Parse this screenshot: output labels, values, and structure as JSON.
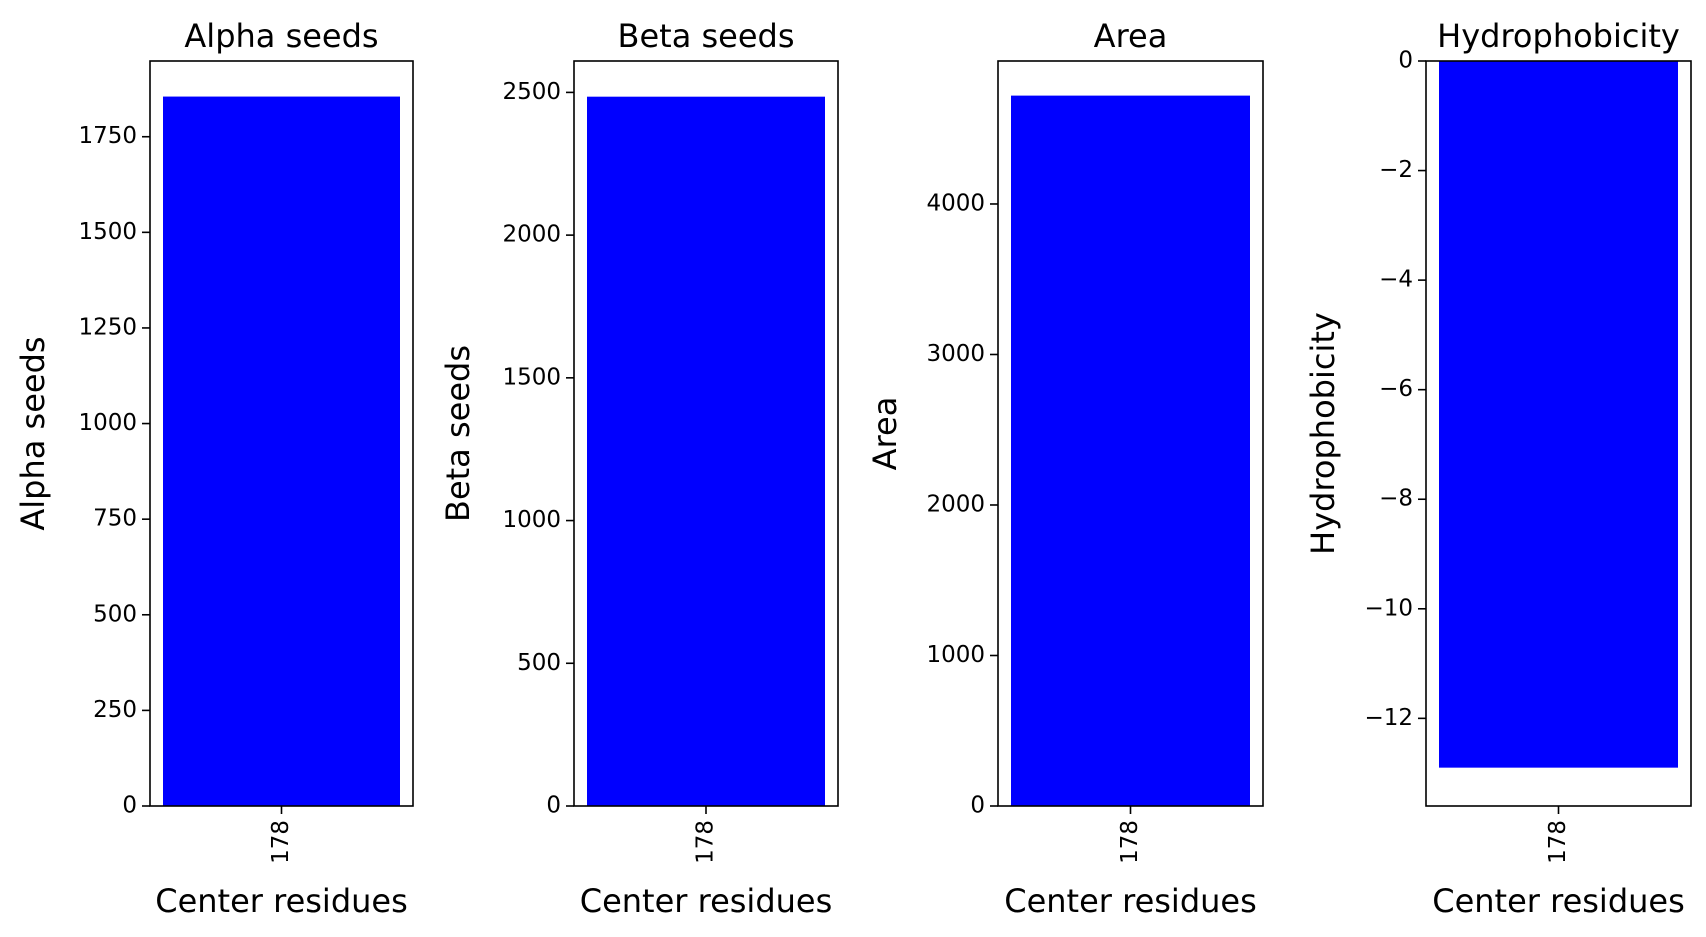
{
  "chart_data": [
    {
      "type": "bar",
      "title": "Alpha seeds",
      "xlabel": "Center residues",
      "ylabel": "Alpha seeds",
      "categories": [
        "178"
      ],
      "values": [
        1855
      ],
      "ylim": [
        0,
        1948
      ],
      "yticks": [
        0,
        250,
        500,
        750,
        1000,
        1250,
        1500,
        1750
      ],
      "color": "#0000ff",
      "grid": false
    },
    {
      "type": "bar",
      "title": "Beta seeds",
      "xlabel": "Center residues",
      "ylabel": "Beta seeds",
      "categories": [
        "178"
      ],
      "values": [
        2485
      ],
      "ylim": [
        0,
        2610
      ],
      "yticks": [
        0,
        500,
        1000,
        1500,
        2000,
        2500
      ],
      "color": "#0000ff",
      "grid": false
    },
    {
      "type": "bar",
      "title": "Area",
      "xlabel": "Center residues",
      "ylabel": "Area",
      "categories": [
        "178"
      ],
      "values": [
        4720
      ],
      "ylim": [
        0,
        4950
      ],
      "yticks": [
        0,
        1000,
        2000,
        3000,
        4000
      ],
      "color": "#0000ff",
      "grid": false
    },
    {
      "type": "bar",
      "title": "Hydrophobicity",
      "xlabel": "Center residues",
      "ylabel": "Hydrophobicity",
      "categories": [
        "178"
      ],
      "values": [
        -12.9
      ],
      "ylim": [
        -13.6,
        0
      ],
      "yticks": [
        0,
        -2,
        -4,
        -6,
        -8,
        -10,
        -12
      ],
      "color": "#0000ff",
      "grid": false
    }
  ]
}
